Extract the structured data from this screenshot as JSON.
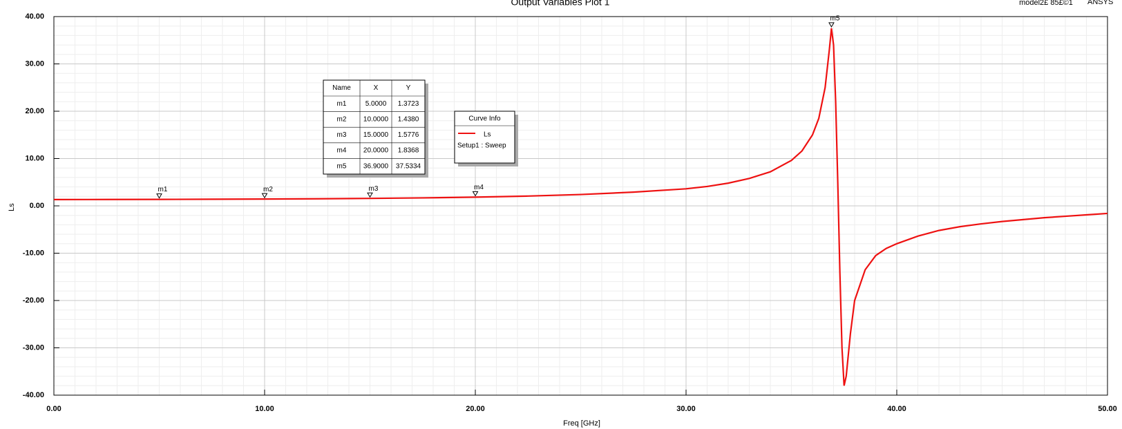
{
  "chart_data": {
    "type": "line",
    "title": "Output Variables Plot 1",
    "corner_texts": [
      "model2£ 85£©1",
      "ANSYS"
    ],
    "xlabel": "Freq [GHz]",
    "ylabel": "Ls",
    "xlim": [
      0,
      50
    ],
    "ylim": [
      -40,
      40
    ],
    "xticks": [
      {
        "value": 0,
        "label": "0.00"
      },
      {
        "value": 10,
        "label": "10.00"
      },
      {
        "value": 20,
        "label": "20.00"
      },
      {
        "value": 30,
        "label": "30.00"
      },
      {
        "value": 40,
        "label": "40.00"
      },
      {
        "value": 50,
        "label": "50.00"
      }
    ],
    "yticks": [
      {
        "value": -40,
        "label": "-40.00"
      },
      {
        "value": -30,
        "label": "-30.00"
      },
      {
        "value": -20,
        "label": "-20.00"
      },
      {
        "value": -10,
        "label": "-10.00"
      },
      {
        "value": 0,
        "label": "0.00"
      },
      {
        "value": 10,
        "label": "10.00"
      },
      {
        "value": 20,
        "label": "20.00"
      },
      {
        "value": 30,
        "label": "30.00"
      },
      {
        "value": 40,
        "label": "40.00"
      }
    ],
    "grid": true,
    "x": [
      0,
      2.5,
      5,
      7.5,
      10,
      12.5,
      15,
      17.5,
      20,
      22.5,
      25,
      27.5,
      30,
      31,
      32,
      33,
      34,
      35,
      35.5,
      36,
      36.3,
      36.6,
      36.8,
      36.9,
      37.0,
      37.1,
      37.2,
      37.3,
      37.4,
      37.5,
      37.6,
      37.8,
      38,
      38.5,
      39,
      39.5,
      40,
      41,
      42,
      43,
      44,
      45,
      46,
      47,
      48,
      49,
      50
    ],
    "series": [
      {
        "name": "Ls",
        "color": "#ee1111",
        "values": [
          1.33,
          1.35,
          1.37,
          1.4,
          1.44,
          1.5,
          1.58,
          1.69,
          1.84,
          2.07,
          2.4,
          2.9,
          3.6,
          4.1,
          4.8,
          5.8,
          7.2,
          9.6,
          11.6,
          15,
          18.5,
          25,
          33,
          37.53,
          34,
          22,
          5,
          -14,
          -30,
          -38,
          -36,
          -27,
          -20,
          -13.5,
          -10.5,
          -9,
          -8,
          -6.4,
          -5.2,
          -4.4,
          -3.8,
          -3.3,
          -2.9,
          -2.5,
          -2.2,
          -1.9,
          -1.6
        ]
      }
    ],
    "legend_title": "Curve Info",
    "legend_subtitle": "Setup1 : Sweep",
    "marker_table_header": [
      "Name",
      "X",
      "Y"
    ],
    "markers": {
      "names": [
        "m1",
        "m2",
        "m3",
        "m4",
        "m5"
      ],
      "x": [
        5,
        10,
        15,
        20,
        36.9
      ],
      "y": [
        1.3723,
        1.438,
        1.5776,
        1.8368,
        37.5334
      ],
      "x_labels": [
        "5.0000",
        "10.0000",
        "15.0000",
        "20.0000",
        "36.9000"
      ],
      "y_labels": [
        "1.3723",
        "1.4380",
        "1.5776",
        "1.8368",
        "37.5334"
      ]
    }
  }
}
